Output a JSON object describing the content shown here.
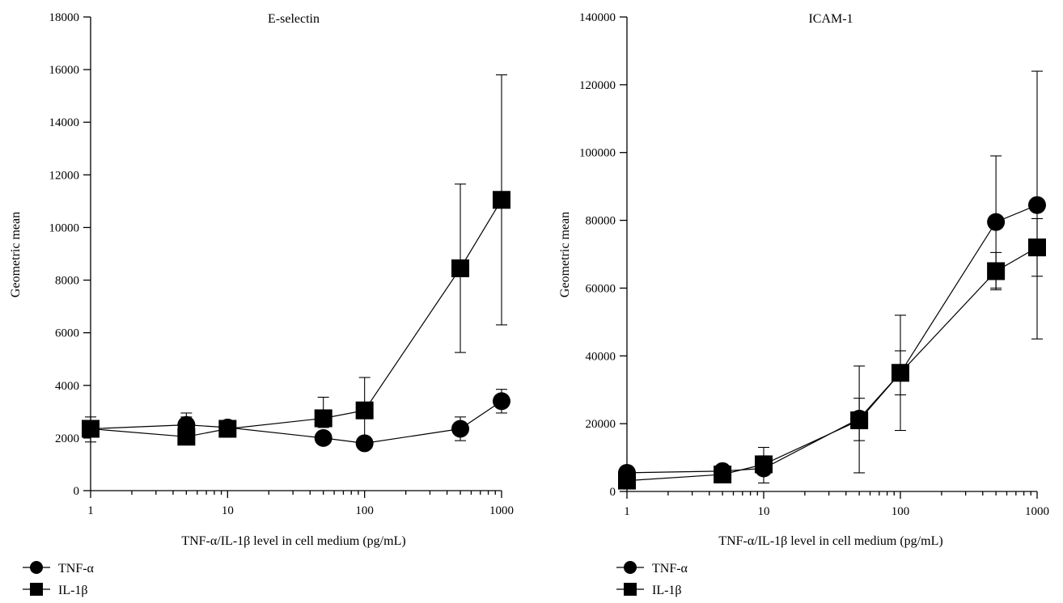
{
  "chart_data": [
    {
      "type": "line",
      "title": "E-selectin",
      "xlabel": "TNF-α/IL-1β level in cell medium (pg/mL)",
      "ylabel": "Geometric mean",
      "xscale": "log",
      "xlim": [
        1,
        1000
      ],
      "ylim": [
        0,
        18000
      ],
      "xticks": [
        1,
        10,
        100,
        1000
      ],
      "yticks": [
        0,
        2000,
        4000,
        6000,
        8000,
        10000,
        12000,
        14000,
        16000,
        18000
      ],
      "grid": false,
      "legend": "bottom-left",
      "series": [
        {
          "name": "TNF-α",
          "marker": "circle",
          "points": [
            {
              "x": 1,
              "y": 2350,
              "err_low": 2150,
              "err_high": 2550
            },
            {
              "x": 5,
              "y": 2500,
              "err_low": 2200,
              "err_high": 2800
            },
            {
              "x": 10,
              "y": 2400,
              "err_low": 2250,
              "err_high": 2600
            },
            {
              "x": 50,
              "y": 2000,
              "err_low": 1900,
              "err_high": 2100
            },
            {
              "x": 100,
              "y": 1800,
              "err_low": 1750,
              "err_high": 1850
            },
            {
              "x": 500,
              "y": 2350,
              "err_low": 1900,
              "err_high": 2800
            },
            {
              "x": 1000,
              "y": 3400,
              "err_low": 2950,
              "err_high": 3850
            }
          ]
        },
        {
          "name": "IL-1β",
          "marker": "square",
          "points": [
            {
              "x": 1,
              "y": 2350,
              "err_low": 1850,
              "err_high": 2800
            },
            {
              "x": 5,
              "y": 2050,
              "err_low": 1850,
              "err_high": 2950
            },
            {
              "x": 10,
              "y": 2350,
              "err_low": 2250,
              "err_high": 2550
            },
            {
              "x": 50,
              "y": 2750,
              "err_low": 2400,
              "err_high": 3550
            },
            {
              "x": 100,
              "y": 3050,
              "err_low": 1800,
              "err_high": 4300
            },
            {
              "x": 500,
              "y": 8450,
              "err_low": 5250,
              "err_high": 11650
            },
            {
              "x": 1000,
              "y": 11050,
              "err_low": 6300,
              "err_high": 15800
            }
          ]
        }
      ]
    },
    {
      "type": "line",
      "title": "ICAM-1",
      "xlabel": "TNF-α/IL-1β level in cell medium (pg/mL)",
      "ylabel": "Geometric mean",
      "xscale": "log",
      "xlim": [
        1,
        1000
      ],
      "ylim": [
        0,
        140000
      ],
      "xticks": [
        1,
        10,
        100,
        1000
      ],
      "yticks": [
        0,
        20000,
        40000,
        60000,
        80000,
        100000,
        120000,
        140000
      ],
      "grid": false,
      "legend": "bottom-left",
      "series": [
        {
          "name": "TNF-α",
          "marker": "circle",
          "points": [
            {
              "x": 1,
              "y": 5500,
              "err_low": 4500,
              "err_high": 6500
            },
            {
              "x": 5,
              "y": 6000,
              "err_low": 5000,
              "err_high": 7000
            },
            {
              "x": 10,
              "y": 6800,
              "err_low": 2500,
              "err_high": 13000
            },
            {
              "x": 50,
              "y": 21500,
              "err_low": 15000,
              "err_high": 27500
            },
            {
              "x": 100,
              "y": 35000,
              "err_low": 28500,
              "err_high": 41500
            },
            {
              "x": 500,
              "y": 79500,
              "err_low": 60000,
              "err_high": 99000
            },
            {
              "x": 1000,
              "y": 84500,
              "err_low": 45000,
              "err_high": 124000
            }
          ]
        },
        {
          "name": "IL-1β",
          "marker": "square",
          "points": [
            {
              "x": 1,
              "y": 3200,
              "err_low": 2200,
              "err_high": 4200
            },
            {
              "x": 5,
              "y": 5000,
              "err_low": 4000,
              "err_high": 6000
            },
            {
              "x": 10,
              "y": 8000,
              "err_low": 5500,
              "err_high": 10500
            },
            {
              "x": 50,
              "y": 21000,
              "err_low": 5500,
              "err_high": 37000
            },
            {
              "x": 100,
              "y": 35000,
              "err_low": 18000,
              "err_high": 52000
            },
            {
              "x": 500,
              "y": 65000,
              "err_low": 59500,
              "err_high": 70500
            },
            {
              "x": 1000,
              "y": 72000,
              "err_low": 63500,
              "err_high": 80500
            }
          ]
        }
      ]
    }
  ]
}
